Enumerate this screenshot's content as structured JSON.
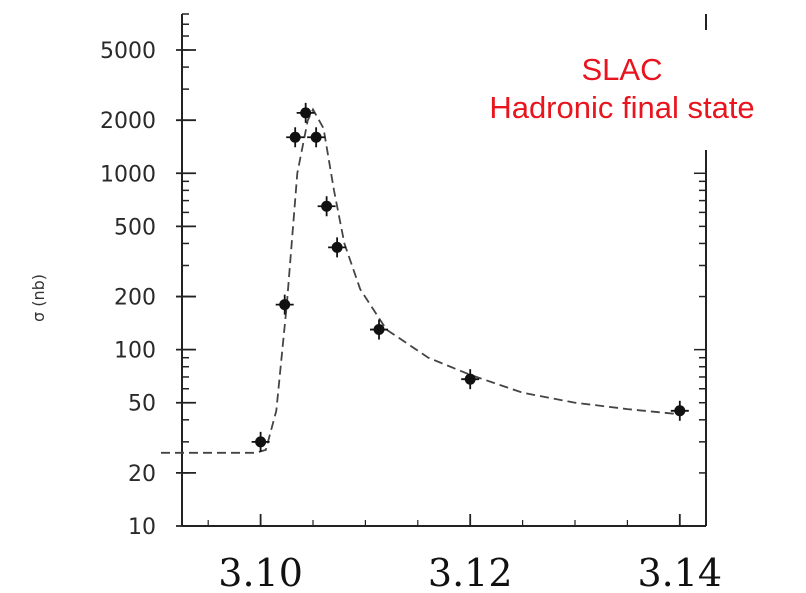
{
  "chart_data": {
    "type": "scatter",
    "title": "",
    "xlabel": "",
    "ylabel": "σ (nb)",
    "yscale": "log",
    "xlim": [
      3.0925,
      3.1425
    ],
    "ylim": [
      10,
      8000
    ],
    "x_ticks": [
      "3.10",
      "3.12",
      "3.14"
    ],
    "x_tick_values": [
      3.1,
      3.12,
      3.14
    ],
    "y_ticks": [
      "5000",
      "2000",
      "1000",
      "500",
      "200",
      "100",
      "50",
      "20",
      "10"
    ],
    "y_tick_values": [
      5000,
      2000,
      1000,
      500,
      200,
      100,
      50,
      20,
      10
    ],
    "grid": false,
    "annotations": [
      {
        "text": "SLAC",
        "color": "#e8141e"
      },
      {
        "text": "Hadronic final state",
        "color": "#e8141e"
      }
    ],
    "series": [
      {
        "type": "scatter",
        "marker_color": "#111111",
        "x": [
          3.1,
          3.1023,
          3.1033,
          3.1043,
          3.1053,
          3.1063,
          3.1073,
          3.1113,
          3.12,
          3.14
        ],
        "y": [
          30,
          180,
          1600,
          2200,
          1600,
          650,
          380,
          130,
          68,
          45
        ]
      },
      {
        "type": "line",
        "style": "dashed",
        "line_color": "#444444",
        "x": [
          3.0905,
          3.098,
          3.0995,
          3.1005,
          3.1015,
          3.1025,
          3.1035,
          3.1045,
          3.105,
          3.106,
          3.107,
          3.108,
          3.1095,
          3.112,
          3.116,
          3.12,
          3.125,
          3.13,
          3.135,
          3.14
        ],
        "y": [
          26,
          26,
          26,
          27,
          45,
          180,
          1000,
          2000,
          2300,
          1800,
          800,
          400,
          220,
          130,
          90,
          72,
          57,
          50,
          46,
          43
        ]
      }
    ]
  }
}
